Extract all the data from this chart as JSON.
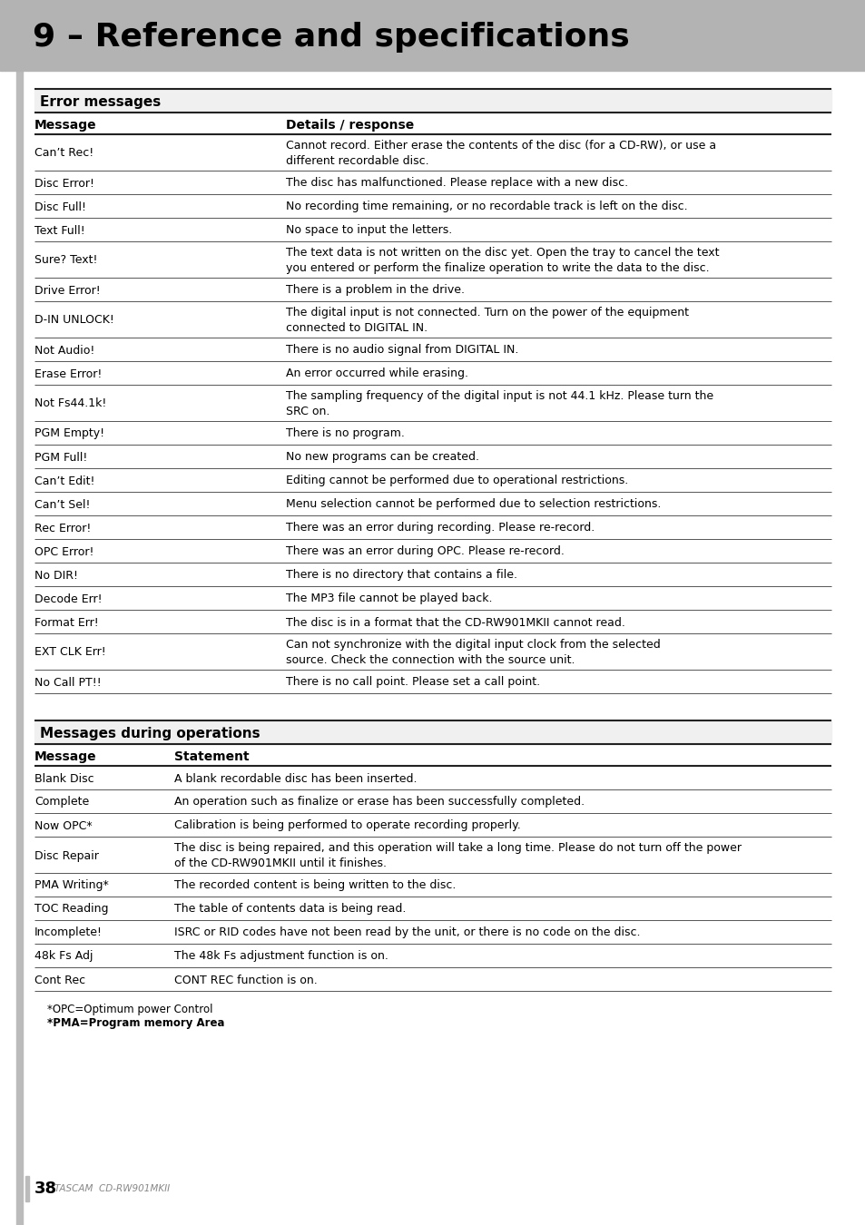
{
  "title": "9 – Reference and specifications",
  "title_bg": "#b3b3b3",
  "page_bg": "#ffffff",
  "section1_title": "Error messages",
  "section1_col1": "Message",
  "section1_col2": "Details / response",
  "error_rows": [
    [
      "Can’t Rec!",
      "Cannot record. Either erase the contents of the disc (for a CD-RW), or use a\ndifferent recordable disc."
    ],
    [
      "Disc Error!",
      "The disc has malfunctioned. Please replace with a new disc."
    ],
    [
      "Disc Full!",
      "No recording time remaining, or no recordable track is left on the disc."
    ],
    [
      "Text Full!",
      "No space to input the letters."
    ],
    [
      "Sure? Text!",
      "The text data is not written on the disc yet. Open the tray to cancel the text\nyou entered or perform the finalize operation to write the data to the disc."
    ],
    [
      "Drive Error!",
      "There is a problem in the drive."
    ],
    [
      "D-IN UNLOCK!",
      "The digital input is not connected. Turn on the power of the equipment\nconnected to DIGITAL IN."
    ],
    [
      "Not Audio!",
      "There is no audio signal from DIGITAL IN."
    ],
    [
      "Erase Error!",
      "An error occurred while erasing."
    ],
    [
      "Not Fs44.1k!",
      "The sampling frequency of the digital input is not 44.1 kHz. Please turn the\nSRC on."
    ],
    [
      "PGM Empty!",
      "There is no program."
    ],
    [
      "PGM Full!",
      "No new programs can be created."
    ],
    [
      "Can’t Edit!",
      "Editing cannot be performed due to operational restrictions."
    ],
    [
      "Can’t Sel!",
      "Menu selection cannot be performed due to selection restrictions."
    ],
    [
      "Rec Error!",
      "There was an error during recording. Please re-record."
    ],
    [
      "OPC Error!",
      "There was an error during OPC. Please re-record."
    ],
    [
      "No DIR!",
      "There is no directory that contains a file."
    ],
    [
      "Decode Err!",
      "The MP3 file cannot be played back."
    ],
    [
      "Format Err!",
      "The disc is in a format that the CD-RW901MKII cannot read."
    ],
    [
      "EXT CLK Err!",
      "Can not synchronize with the digital input clock from the selected\nsource. Check the connection with the source unit."
    ],
    [
      "No Call PT!!",
      "There is no call point. Please set a call point."
    ]
  ],
  "section2_title": "Messages during operations",
  "section2_col1": "Message",
  "section2_col2": "Statement",
  "ops_rows": [
    [
      "Blank Disc",
      "A blank recordable disc has been inserted."
    ],
    [
      "Complete",
      "An operation such as finalize or erase has been successfully completed."
    ],
    [
      "Now OPC*",
      "Calibration is being performed to operate recording properly."
    ],
    [
      "Disc Repair",
      "The disc is being repaired, and this operation will take a long time. Please do not turn off the power\nof the CD-RW901MKII until it finishes."
    ],
    [
      "PMA Writing*",
      "The recorded content is being written to the disc."
    ],
    [
      "TOC Reading",
      "The table of contents data is being read."
    ],
    [
      "Incomplete!",
      "ISRC or RID codes have not been read by the unit, or there is no code on the disc."
    ],
    [
      "48k Fs Adj",
      "The 48k Fs adjustment function is on."
    ],
    [
      "Cont Rec",
      "CONT REC function is on."
    ]
  ],
  "footnote1": "*OPC=Optimum power Control",
  "footnote2": "*PMA=Program memory Area",
  "footer_page": "38",
  "footer_text": "TASCAM  CD-RW901MKII",
  "col1_split": 0.315,
  "col2_split": 0.175
}
